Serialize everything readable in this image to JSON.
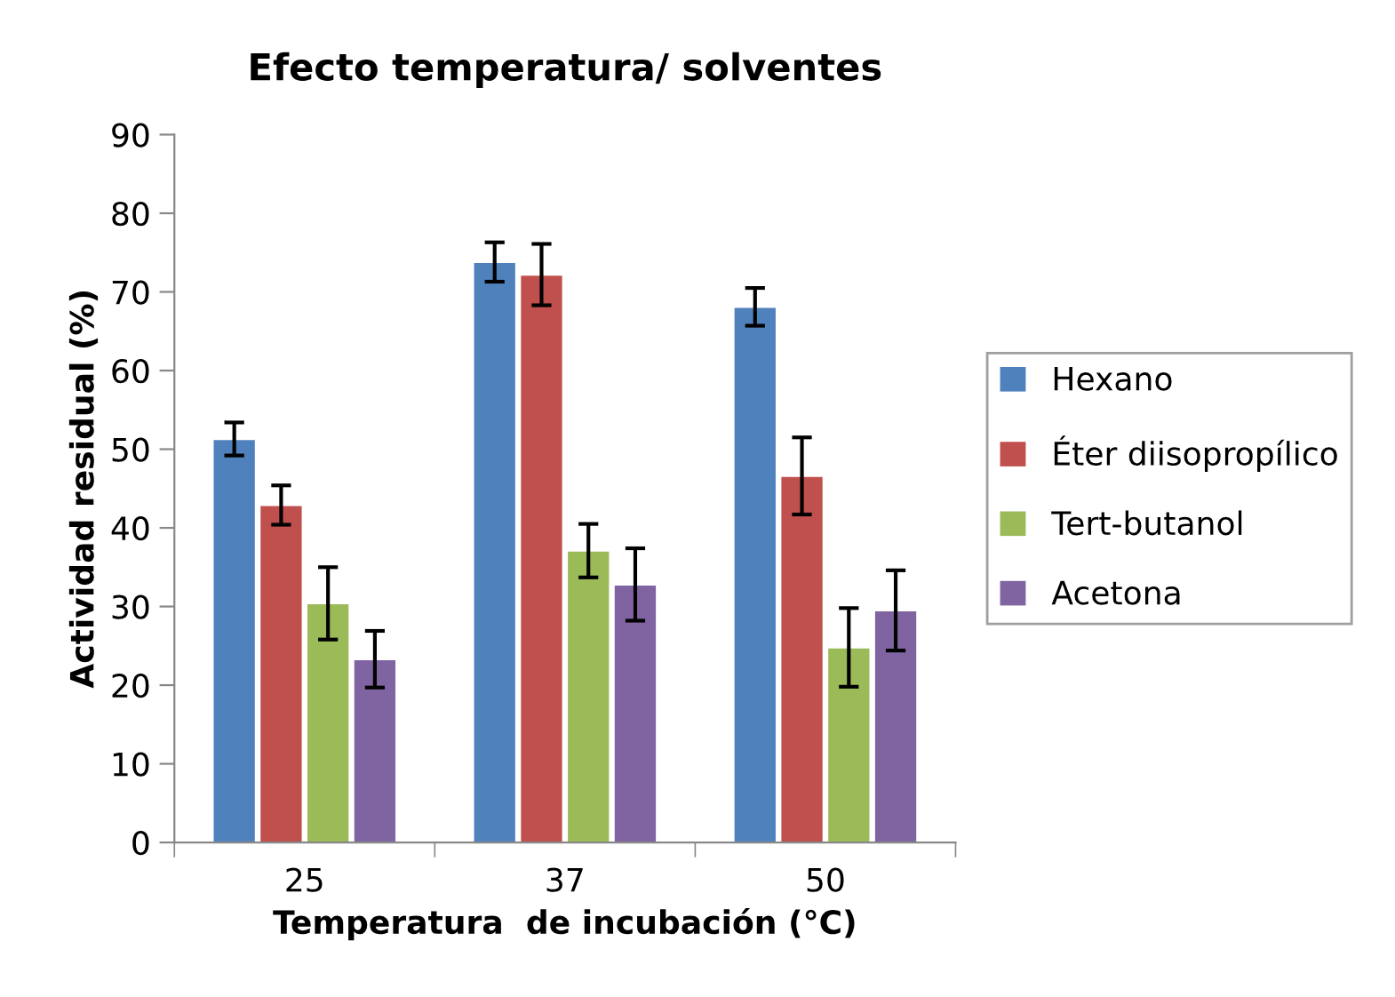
{
  "chart_data": {
    "type": "bar",
    "title": "Efecto temperatura/ solventes",
    "xlabel": "Temperatura  de incubación (°C)",
    "ylabel": "Actividad residual (%)",
    "categories": [
      "25",
      "37",
      "50"
    ],
    "series": [
      {
        "name": "Hexano",
        "color": "#4f81bd",
        "values": [
          51.3,
          73.8,
          68.1
        ],
        "errors": [
          2.1,
          2.5,
          2.4
        ]
      },
      {
        "name": "Éter diisopropílico",
        "color": "#c0504d",
        "values": [
          42.9,
          72.2,
          46.6
        ],
        "errors": [
          2.5,
          3.9,
          4.9
        ]
      },
      {
        "name": "Tert-butanol",
        "color": "#9bbb59",
        "values": [
          30.4,
          37.1,
          24.8
        ],
        "errors": [
          4.6,
          3.4,
          5.0
        ]
      },
      {
        "name": "Acetona",
        "color": "#8064a2",
        "values": [
          23.3,
          32.8,
          29.5
        ],
        "errors": [
          3.6,
          4.6,
          5.1
        ]
      }
    ],
    "ylim": [
      0,
      90
    ],
    "yticks": [
      0,
      10,
      20,
      30,
      40,
      50,
      60,
      70,
      80,
      90
    ],
    "grid": false,
    "legend": "right"
  }
}
